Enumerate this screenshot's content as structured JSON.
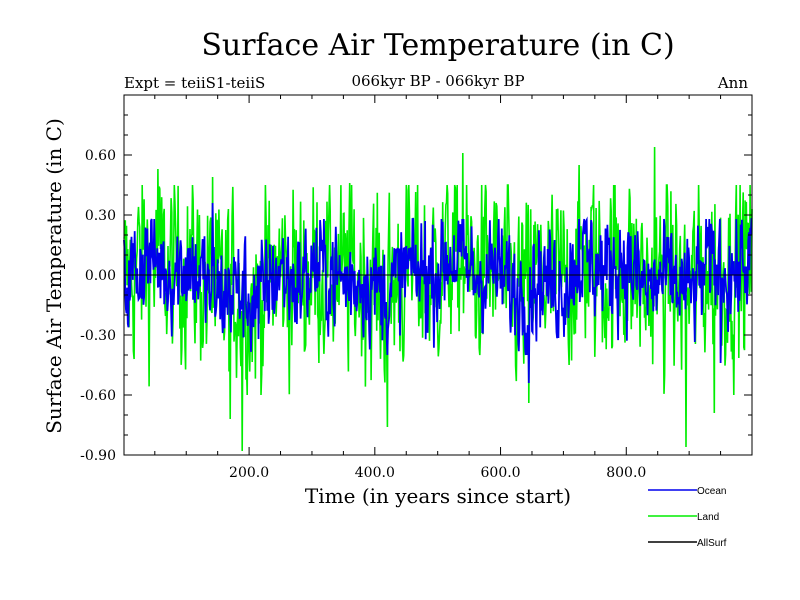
{
  "chart_data": {
    "type": "line",
    "title": "Surface Air Temperature (in C)",
    "subtitle": "066kyr BP - 066kyr BP",
    "left_label": "Expt = teiiS1-teiiS",
    "right_label": "Ann",
    "xlabel": "Time (in years since start)",
    "ylabel": "Surface Air Temperature (in C)",
    "xlim": [
      1,
      1000
    ],
    "ylim": [
      -0.9,
      0.9
    ],
    "x_ticks": [
      200,
      400,
      600,
      800
    ],
    "x_tick_labels": [
      "200.0",
      "400.0",
      "600.0",
      "800.0"
    ],
    "y_ticks": [
      -0.9,
      -0.6,
      -0.3,
      0.0,
      0.3,
      0.6
    ],
    "y_tick_labels": [
      "-0.90",
      "-0.60",
      "-0.30",
      "0.00",
      "0.30",
      "0.60"
    ],
    "zero_line": true,
    "legend_position": "bottom-right",
    "series": [
      {
        "name": "Land",
        "color": "#00ee00",
        "amplitude": 0.22,
        "extremes": [
          [
            55,
            0.53
          ],
          [
            142,
            0.49
          ],
          [
            170,
            -0.72
          ],
          [
            189,
            -0.88
          ],
          [
            360,
            0.46
          ],
          [
            420,
            -0.76
          ],
          [
            540,
            0.61
          ],
          [
            645,
            -0.64
          ],
          [
            725,
            0.55
          ],
          [
            845,
            0.64
          ],
          [
            895,
            -0.86
          ],
          [
            940,
            -0.69
          ]
        ]
      },
      {
        "name": "Ocean",
        "color": "#0000ee",
        "amplitude": 0.13,
        "extremes": [
          [
            142,
            0.36
          ],
          [
            215,
            -0.32
          ],
          [
            480,
            0.27
          ],
          [
            645,
            -0.54
          ],
          [
            725,
            0.28
          ],
          [
            950,
            -0.44
          ]
        ]
      },
      {
        "name": "AllSurf",
        "color": "#000000",
        "amplitude": 0,
        "extremes": []
      }
    ]
  }
}
